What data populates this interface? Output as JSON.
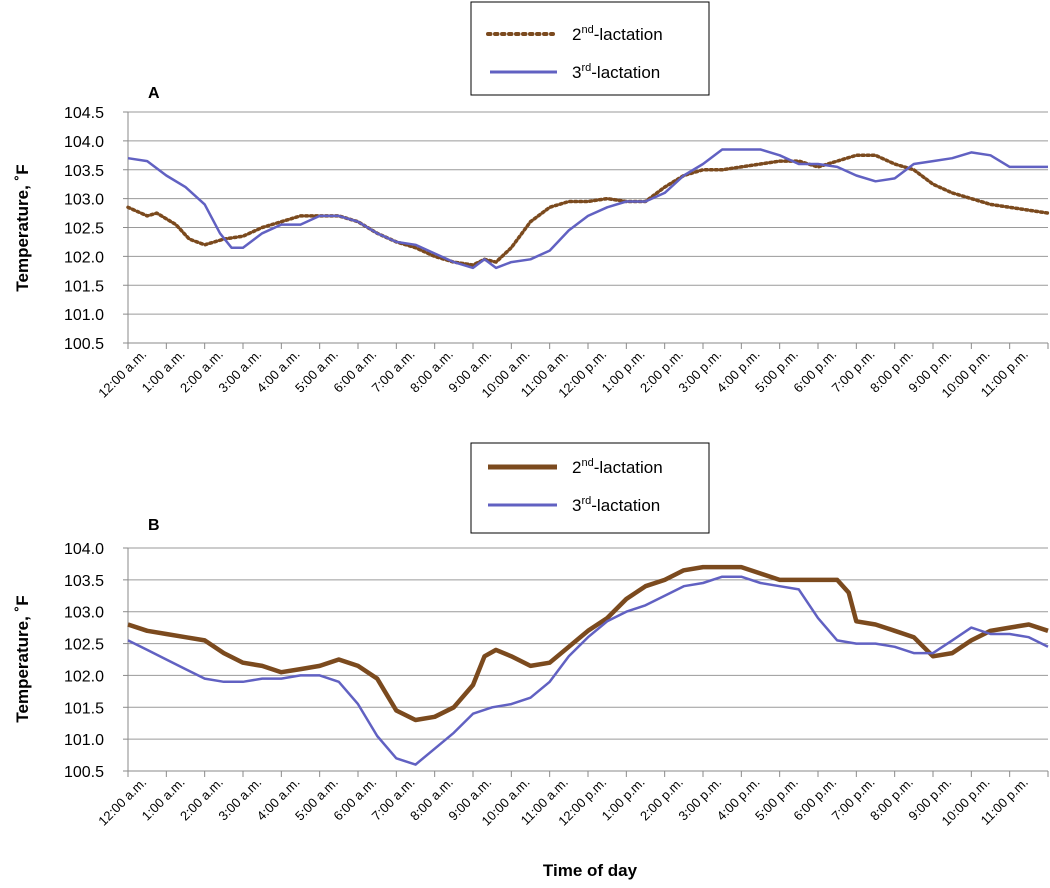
{
  "chart_data": [
    {
      "type": "line",
      "panel_label": "A",
      "ylabel": "Temperature, ˚F",
      "ylim": [
        100.5,
        104.5
      ],
      "yticks": [
        "100.5",
        "101.0",
        "101.5",
        "102.0",
        "102.5",
        "103.0",
        "103.5",
        "104.0",
        "104.5"
      ],
      "ytick_values": [
        100.5,
        101.0,
        101.5,
        102.0,
        102.5,
        103.0,
        103.5,
        104.0,
        104.5
      ],
      "categories": [
        "12:00 a.m.",
        "1:00 a.m.",
        "2:00 a.m.",
        "3:00 a.m.",
        "4:00 a.m.",
        "5:00 a.m.",
        "6:00 a.m.",
        "7:00 a.m.",
        "8:00 a.m.",
        "9:00 a.m.",
        "10:00 a.m.",
        "11:00 a.m.",
        "12:00 p.m.",
        "1:00 p.m.",
        "2:00 p.m.",
        "3:00 p.m.",
        "4:00 p.m.",
        "5:00 p.m.",
        "6:00 p.m.",
        "7:00 p.m.",
        "8:00 p.m.",
        "9:00 p.m.",
        "10:00 p.m.",
        "11:00 p.m."
      ],
      "x_hours": [
        0,
        1,
        2,
        3,
        4,
        5,
        6,
        7,
        8,
        9,
        10,
        11,
        12,
        13,
        14,
        15,
        16,
        17,
        18,
        19,
        20,
        21,
        22,
        23,
        24
      ],
      "grid": true,
      "legend": "top-center",
      "series": [
        {
          "name": "2nd-lactation",
          "label_main": "2",
          "label_sup": "nd",
          "label_rest": "-lactation",
          "color": "#7B4A1E",
          "style": "dotted",
          "points": [
            [
              0,
              102.85
            ],
            [
              0.5,
              102.7
            ],
            [
              0.75,
              102.75
            ],
            [
              1.25,
              102.55
            ],
            [
              1.6,
              102.3
            ],
            [
              2.0,
              102.2
            ],
            [
              2.5,
              102.3
            ],
            [
              3.0,
              102.35
            ],
            [
              3.5,
              102.5
            ],
            [
              4.0,
              102.6
            ],
            [
              4.5,
              102.7
            ],
            [
              5.0,
              102.7
            ],
            [
              5.5,
              102.7
            ],
            [
              6.0,
              102.6
            ],
            [
              6.5,
              102.4
            ],
            [
              7.0,
              102.25
            ],
            [
              7.5,
              102.15
            ],
            [
              8.0,
              102.0
            ],
            [
              8.5,
              101.9
            ],
            [
              9.0,
              101.85
            ],
            [
              9.3,
              101.95
            ],
            [
              9.6,
              101.9
            ],
            [
              10.0,
              102.15
            ],
            [
              10.5,
              102.6
            ],
            [
              11.0,
              102.85
            ],
            [
              11.5,
              102.95
            ],
            [
              12.0,
              102.95
            ],
            [
              12.5,
              103.0
            ],
            [
              13.0,
              102.95
            ],
            [
              13.5,
              102.95
            ],
            [
              14.0,
              103.2
            ],
            [
              14.5,
              103.4
            ],
            [
              15.0,
              103.5
            ],
            [
              15.5,
              103.5
            ],
            [
              16.0,
              103.55
            ],
            [
              16.5,
              103.6
            ],
            [
              17.0,
              103.65
            ],
            [
              17.5,
              103.65
            ],
            [
              18.0,
              103.55
            ],
            [
              18.5,
              103.65
            ],
            [
              19.0,
              103.75
            ],
            [
              19.5,
              103.75
            ],
            [
              20.0,
              103.6
            ],
            [
              20.5,
              103.5
            ],
            [
              21.0,
              103.25
            ],
            [
              21.5,
              103.1
            ],
            [
              22.0,
              103.0
            ],
            [
              22.5,
              102.9
            ],
            [
              23.0,
              102.85
            ],
            [
              23.5,
              102.8
            ],
            [
              24.0,
              102.75
            ]
          ]
        },
        {
          "name": "3rd-lactation",
          "label_main": "3",
          "label_sup": "rd",
          "label_rest": "-lactation",
          "color": "#6161C2",
          "style": "solid",
          "points": [
            [
              0,
              103.7
            ],
            [
              0.5,
              103.65
            ],
            [
              1.0,
              103.4
            ],
            [
              1.5,
              103.2
            ],
            [
              2.0,
              102.9
            ],
            [
              2.4,
              102.4
            ],
            [
              2.7,
              102.15
            ],
            [
              3.0,
              102.15
            ],
            [
              3.5,
              102.4
            ],
            [
              4.0,
              102.55
            ],
            [
              4.5,
              102.55
            ],
            [
              5.0,
              102.7
            ],
            [
              5.5,
              102.7
            ],
            [
              6.0,
              102.6
            ],
            [
              6.5,
              102.4
            ],
            [
              7.0,
              102.25
            ],
            [
              7.5,
              102.2
            ],
            [
              8.0,
              102.05
            ],
            [
              8.5,
              101.9
            ],
            [
              9.0,
              101.8
            ],
            [
              9.3,
              101.95
            ],
            [
              9.6,
              101.8
            ],
            [
              10.0,
              101.9
            ],
            [
              10.5,
              101.95
            ],
            [
              11.0,
              102.1
            ],
            [
              11.5,
              102.45
            ],
            [
              12.0,
              102.7
            ],
            [
              12.5,
              102.85
            ],
            [
              13.0,
              102.95
            ],
            [
              13.5,
              102.95
            ],
            [
              14.0,
              103.1
            ],
            [
              14.5,
              103.4
            ],
            [
              15.0,
              103.6
            ],
            [
              15.5,
              103.85
            ],
            [
              16.0,
              103.85
            ],
            [
              16.5,
              103.85
            ],
            [
              17.0,
              103.75
            ],
            [
              17.5,
              103.6
            ],
            [
              18.0,
              103.6
            ],
            [
              18.5,
              103.55
            ],
            [
              19.0,
              103.4
            ],
            [
              19.5,
              103.3
            ],
            [
              20.0,
              103.35
            ],
            [
              20.5,
              103.6
            ],
            [
              21.0,
              103.65
            ],
            [
              21.5,
              103.7
            ],
            [
              22.0,
              103.8
            ],
            [
              22.5,
              103.75
            ],
            [
              23.0,
              103.55
            ],
            [
              23.5,
              103.55
            ],
            [
              24.0,
              103.55
            ]
          ]
        }
      ]
    },
    {
      "type": "line",
      "panel_label": "B",
      "ylabel": "Temperature, ˚F",
      "xlabel": "Time of day",
      "ylim": [
        100.5,
        104.0
      ],
      "yticks": [
        "100.5",
        "101.0",
        "101.5",
        "102.0",
        "102.5",
        "103.0",
        "103.5",
        "104.0"
      ],
      "ytick_values": [
        100.5,
        101.0,
        101.5,
        102.0,
        102.5,
        103.0,
        103.5,
        104.0
      ],
      "categories": [
        "12:00 a.m.",
        "1:00 a.m.",
        "2:00 a.m.",
        "3:00 a.m.",
        "4:00 a.m.",
        "5:00 a.m.",
        "6:00 a.m.",
        "7:00 a.m.",
        "8:00 a.m.",
        "9:00 a.m.",
        "10:00 a.m.",
        "11:00 a.m.",
        "12:00 p.m.",
        "1:00 p.m.",
        "2:00 p.m.",
        "3:00 p.m.",
        "4:00 p.m.",
        "5:00 p.m.",
        "6:00 p.m.",
        "7:00 p.m.",
        "8:00 p.m.",
        "9:00 p.m.",
        "10:00 p.m.",
        "11:00 p.m."
      ],
      "x_hours": [
        0,
        1,
        2,
        3,
        4,
        5,
        6,
        7,
        8,
        9,
        10,
        11,
        12,
        13,
        14,
        15,
        16,
        17,
        18,
        19,
        20,
        21,
        22,
        23,
        24
      ],
      "grid": true,
      "legend": "top-center",
      "series": [
        {
          "name": "2nd-lactation",
          "label_main": "2",
          "label_sup": "nd",
          "label_rest": "-lactation",
          "color": "#7B4A1E",
          "style": "solid-thick",
          "points": [
            [
              0,
              102.8
            ],
            [
              0.5,
              102.7
            ],
            [
              1.0,
              102.65
            ],
            [
              1.5,
              102.6
            ],
            [
              2.0,
              102.55
            ],
            [
              2.5,
              102.35
            ],
            [
              3.0,
              102.2
            ],
            [
              3.5,
              102.15
            ],
            [
              4.0,
              102.05
            ],
            [
              4.5,
              102.1
            ],
            [
              5.0,
              102.15
            ],
            [
              5.5,
              102.25
            ],
            [
              6.0,
              102.15
            ],
            [
              6.5,
              101.95
            ],
            [
              7.0,
              101.45
            ],
            [
              7.5,
              101.3
            ],
            [
              8.0,
              101.35
            ],
            [
              8.5,
              101.5
            ],
            [
              9.0,
              101.85
            ],
            [
              9.3,
              102.3
            ],
            [
              9.6,
              102.4
            ],
            [
              10.0,
              102.3
            ],
            [
              10.5,
              102.15
            ],
            [
              11.0,
              102.2
            ],
            [
              11.5,
              102.45
            ],
            [
              12.0,
              102.7
            ],
            [
              12.5,
              102.9
            ],
            [
              13.0,
              103.2
            ],
            [
              13.5,
              103.4
            ],
            [
              14.0,
              103.5
            ],
            [
              14.5,
              103.65
            ],
            [
              15.0,
              103.7
            ],
            [
              15.5,
              103.7
            ],
            [
              16.0,
              103.7
            ],
            [
              16.5,
              103.6
            ],
            [
              17.0,
              103.5
            ],
            [
              17.5,
              103.5
            ],
            [
              18.0,
              103.5
            ],
            [
              18.5,
              103.5
            ],
            [
              18.8,
              103.3
            ],
            [
              19.0,
              102.85
            ],
            [
              19.5,
              102.8
            ],
            [
              20.0,
              102.7
            ],
            [
              20.5,
              102.6
            ],
            [
              21.0,
              102.3
            ],
            [
              21.5,
              102.35
            ],
            [
              22.0,
              102.55
            ],
            [
              22.5,
              102.7
            ],
            [
              23.0,
              102.75
            ],
            [
              23.5,
              102.8
            ],
            [
              24.0,
              102.7
            ]
          ]
        },
        {
          "name": "3rd-lactation",
          "label_main": "3",
          "label_sup": "rd",
          "label_rest": "-lactation",
          "color": "#6161C2",
          "style": "solid",
          "points": [
            [
              0,
              102.55
            ],
            [
              0.5,
              102.4
            ],
            [
              1.0,
              102.25
            ],
            [
              1.5,
              102.1
            ],
            [
              2.0,
              101.95
            ],
            [
              2.5,
              101.9
            ],
            [
              3.0,
              101.9
            ],
            [
              3.5,
              101.95
            ],
            [
              4.0,
              101.95
            ],
            [
              4.5,
              102.0
            ],
            [
              5.0,
              102.0
            ],
            [
              5.5,
              101.9
            ],
            [
              6.0,
              101.55
            ],
            [
              6.5,
              101.05
            ],
            [
              7.0,
              100.7
            ],
            [
              7.5,
              100.6
            ],
            [
              8.0,
              100.85
            ],
            [
              8.5,
              101.1
            ],
            [
              9.0,
              101.4
            ],
            [
              9.5,
              101.5
            ],
            [
              10.0,
              101.55
            ],
            [
              10.5,
              101.65
            ],
            [
              11.0,
              101.9
            ],
            [
              11.5,
              102.3
            ],
            [
              12.0,
              102.6
            ],
            [
              12.5,
              102.85
            ],
            [
              13.0,
              103.0
            ],
            [
              13.5,
              103.1
            ],
            [
              14.0,
              103.25
            ],
            [
              14.5,
              103.4
            ],
            [
              15.0,
              103.45
            ],
            [
              15.5,
              103.55
            ],
            [
              16.0,
              103.55
            ],
            [
              16.5,
              103.45
            ],
            [
              17.0,
              103.4
            ],
            [
              17.5,
              103.35
            ],
            [
              18.0,
              102.9
            ],
            [
              18.5,
              102.55
            ],
            [
              19.0,
              102.5
            ],
            [
              19.5,
              102.5
            ],
            [
              20.0,
              102.45
            ],
            [
              20.5,
              102.35
            ],
            [
              21.0,
              102.35
            ],
            [
              21.5,
              102.55
            ],
            [
              22.0,
              102.75
            ],
            [
              22.5,
              102.65
            ],
            [
              23.0,
              102.65
            ],
            [
              23.5,
              102.6
            ],
            [
              24.0,
              102.45
            ]
          ]
        }
      ]
    }
  ]
}
